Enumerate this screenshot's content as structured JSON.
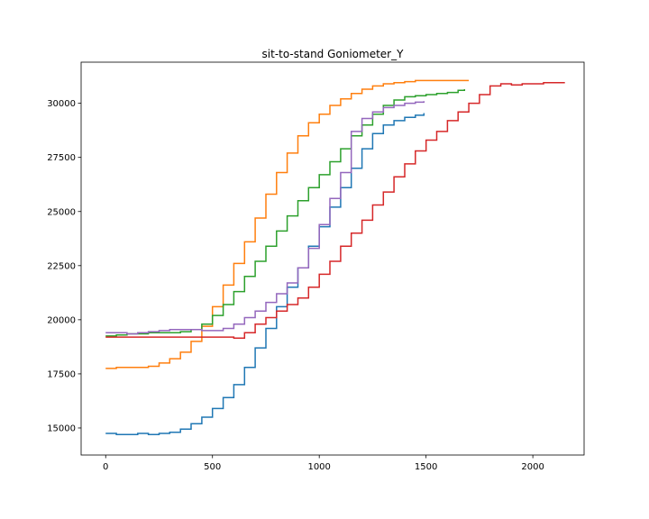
{
  "chart_data": {
    "type": "line",
    "title": "sit-to-stand Goniometer_Y",
    "xlabel": "",
    "ylabel": "",
    "xlim": [
      -115,
      2240
    ],
    "ylim": [
      13750,
      31900
    ],
    "xticks": [
      0,
      500,
      1000,
      1500,
      2000
    ],
    "yticks": [
      15000,
      17500,
      20000,
      22500,
      25000,
      27500,
      30000
    ],
    "grid": false,
    "legend": "none",
    "series": [
      {
        "color": "#1f77b4",
        "x": [
          0,
          50,
          100,
          150,
          200,
          250,
          300,
          350,
          400,
          450,
          500,
          550,
          600,
          650,
          700,
          750,
          800,
          850,
          900,
          950,
          1000,
          1050,
          1100,
          1150,
          1200,
          1250,
          1300,
          1350,
          1400,
          1450,
          1490
        ],
        "y": [
          14750,
          14700,
          14700,
          14750,
          14700,
          14750,
          14800,
          14950,
          15200,
          15500,
          15900,
          16400,
          17000,
          17800,
          18700,
          19600,
          20600,
          21500,
          22400,
          23400,
          24300,
          25200,
          26100,
          27000,
          27900,
          28600,
          29000,
          29200,
          29350,
          29450,
          29550
        ]
      },
      {
        "color": "#ff7f0e",
        "x": [
          0,
          50,
          100,
          150,
          200,
          250,
          300,
          350,
          400,
          450,
          500,
          550,
          600,
          650,
          700,
          750,
          800,
          850,
          900,
          950,
          1000,
          1050,
          1100,
          1150,
          1200,
          1250,
          1300,
          1350,
          1400,
          1450,
          1500,
          1550,
          1600,
          1650,
          1700
        ],
        "y": [
          17750,
          17800,
          17800,
          17800,
          17850,
          18000,
          18200,
          18500,
          19000,
          19700,
          20600,
          21600,
          22600,
          23600,
          24700,
          25800,
          26800,
          27700,
          28500,
          29100,
          29500,
          29900,
          30200,
          30450,
          30650,
          30800,
          30900,
          30950,
          31000,
          31050,
          31050,
          31050,
          31050,
          31050,
          31050
        ]
      },
      {
        "color": "#2ca02c",
        "x": [
          0,
          50,
          100,
          150,
          200,
          250,
          300,
          350,
          400,
          450,
          500,
          550,
          600,
          650,
          700,
          750,
          800,
          850,
          900,
          950,
          1000,
          1050,
          1100,
          1150,
          1200,
          1250,
          1300,
          1350,
          1400,
          1450,
          1500,
          1550,
          1600,
          1650,
          1680
        ],
        "y": [
          19250,
          19300,
          19350,
          19350,
          19400,
          19400,
          19400,
          19450,
          19550,
          19800,
          20200,
          20700,
          21300,
          22000,
          22700,
          23400,
          24100,
          24800,
          25500,
          26100,
          26700,
          27300,
          27900,
          28500,
          29000,
          29500,
          29900,
          30150,
          30300,
          30350,
          30400,
          30450,
          30500,
          30600,
          30650
        ]
      },
      {
        "color": "#d62728",
        "x": [
          0,
          50,
          100,
          150,
          200,
          250,
          300,
          350,
          400,
          450,
          500,
          550,
          600,
          650,
          700,
          750,
          800,
          850,
          900,
          950,
          1000,
          1050,
          1100,
          1150,
          1200,
          1250,
          1300,
          1350,
          1400,
          1450,
          1500,
          1550,
          1600,
          1650,
          1700,
          1750,
          1800,
          1850,
          1900,
          1950,
          2000,
          2050,
          2100,
          2150
        ],
        "y": [
          19200,
          19200,
          19200,
          19200,
          19200,
          19200,
          19200,
          19200,
          19200,
          19200,
          19200,
          19200,
          19150,
          19400,
          19800,
          20100,
          20400,
          20700,
          21000,
          21500,
          22100,
          22700,
          23400,
          24000,
          24600,
          25300,
          25900,
          26600,
          27200,
          27800,
          28300,
          28700,
          29200,
          29600,
          30000,
          30400,
          30800,
          30900,
          30850,
          30900,
          30900,
          30950,
          30950,
          30950
        ]
      },
      {
        "color": "#9467bd",
        "x": [
          0,
          50,
          100,
          150,
          200,
          250,
          300,
          350,
          400,
          450,
          500,
          550,
          600,
          650,
          700,
          750,
          800,
          850,
          900,
          950,
          1000,
          1050,
          1100,
          1150,
          1200,
          1250,
          1300,
          1350,
          1400,
          1450,
          1490
        ],
        "y": [
          19400,
          19400,
          19350,
          19400,
          19450,
          19500,
          19550,
          19550,
          19550,
          19500,
          19500,
          19600,
          19800,
          20100,
          20400,
          20800,
          21200,
          21700,
          22400,
          23300,
          24400,
          25600,
          26800,
          28700,
          29300,
          29600,
          29800,
          29900,
          30000,
          30050,
          30100
        ]
      }
    ]
  }
}
